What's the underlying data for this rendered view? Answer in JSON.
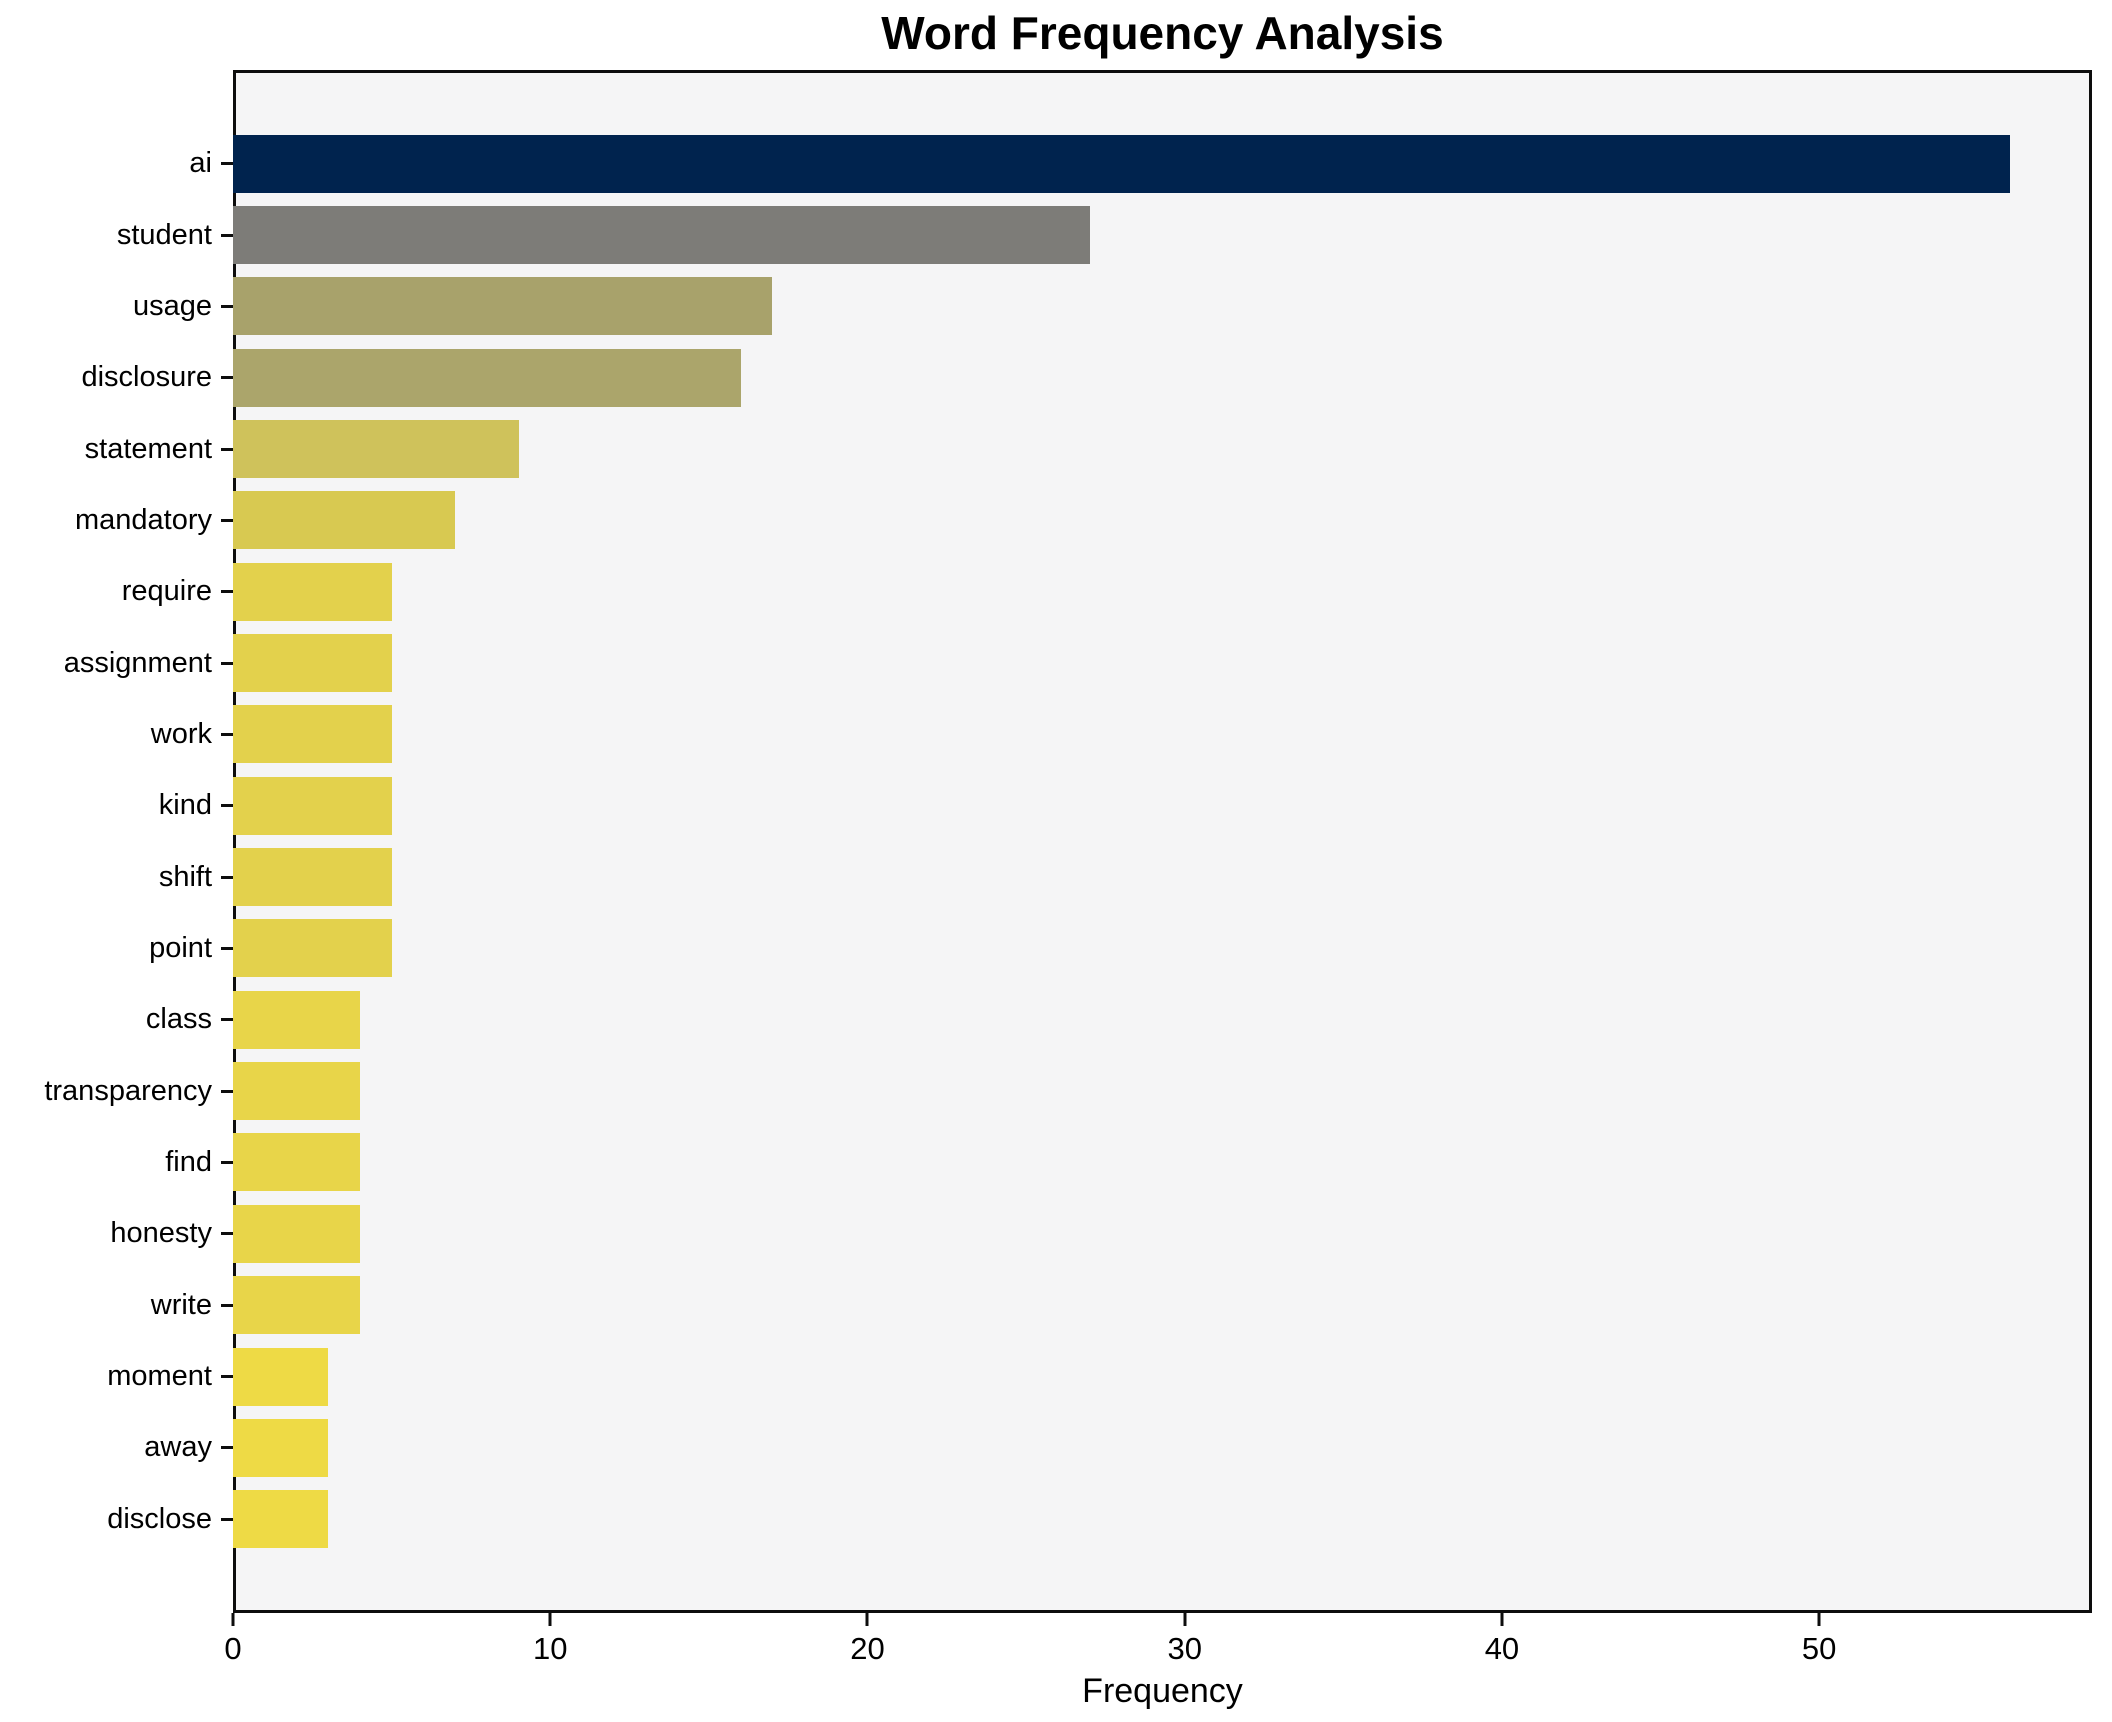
{
  "chart_data": {
    "type": "bar",
    "orientation": "horizontal",
    "title": "Word Frequency Analysis",
    "xlabel": "Frequency",
    "ylabel": "",
    "categories": [
      "ai",
      "student",
      "usage",
      "disclosure",
      "statement",
      "mandatory",
      "require",
      "assignment",
      "work",
      "kind",
      "shift",
      "point",
      "class",
      "transparency",
      "find",
      "honesty",
      "write",
      "moment",
      "away",
      "disclose"
    ],
    "values": [
      56,
      27,
      17,
      16,
      9,
      7,
      5,
      5,
      5,
      5,
      5,
      5,
      4,
      4,
      4,
      4,
      4,
      3,
      3,
      3
    ],
    "bar_colors": [
      "#00234e",
      "#7d7c78",
      "#a8a26b",
      "#aba56b",
      "#cfc25b",
      "#d8c951",
      "#e3d14c",
      "#e3d14c",
      "#e3d14c",
      "#e3d14c",
      "#e3d14c",
      "#e3d14c",
      "#e8d549",
      "#e8d549",
      "#e8d549",
      "#e8d549",
      "#e8d549",
      "#eeda45",
      "#eeda45",
      "#eeda45"
    ],
    "xticks": [
      0,
      10,
      20,
      30,
      40,
      50
    ],
    "xlim": [
      0,
      58.6
    ],
    "grid": false,
    "legend_position": "none",
    "plot_background": "#f5f5f6",
    "figure_background": "#ffffff",
    "spine_color": "#0d0d0d",
    "text_color": "#000000"
  }
}
